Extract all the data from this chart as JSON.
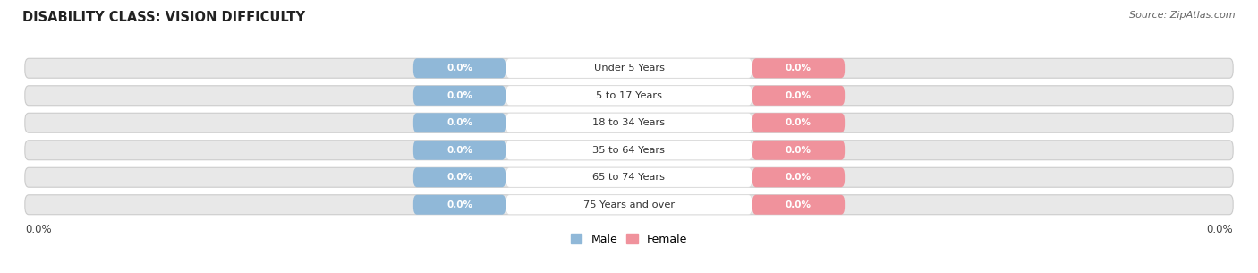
{
  "title": "DISABILITY CLASS: VISION DIFFICULTY",
  "source": "Source: ZipAtlas.com",
  "categories": [
    "Under 5 Years",
    "5 to 17 Years",
    "18 to 34 Years",
    "35 to 64 Years",
    "65 to 74 Years",
    "75 Years and over"
  ],
  "male_values": [
    0.0,
    0.0,
    0.0,
    0.0,
    0.0,
    0.0
  ],
  "female_values": [
    0.0,
    0.0,
    0.0,
    0.0,
    0.0,
    0.0
  ],
  "male_color": "#90b8d8",
  "female_color": "#f0929c",
  "male_label": "Male",
  "female_label": "Female",
  "bar_bg_color": "#e8e8e8",
  "category_text_color": "#333333",
  "title_color": "#222222",
  "axis_label_left": "0.0%",
  "axis_label_right": "0.0%",
  "bg_color": "#ffffff",
  "fig_width": 14.06,
  "fig_height": 3.05
}
